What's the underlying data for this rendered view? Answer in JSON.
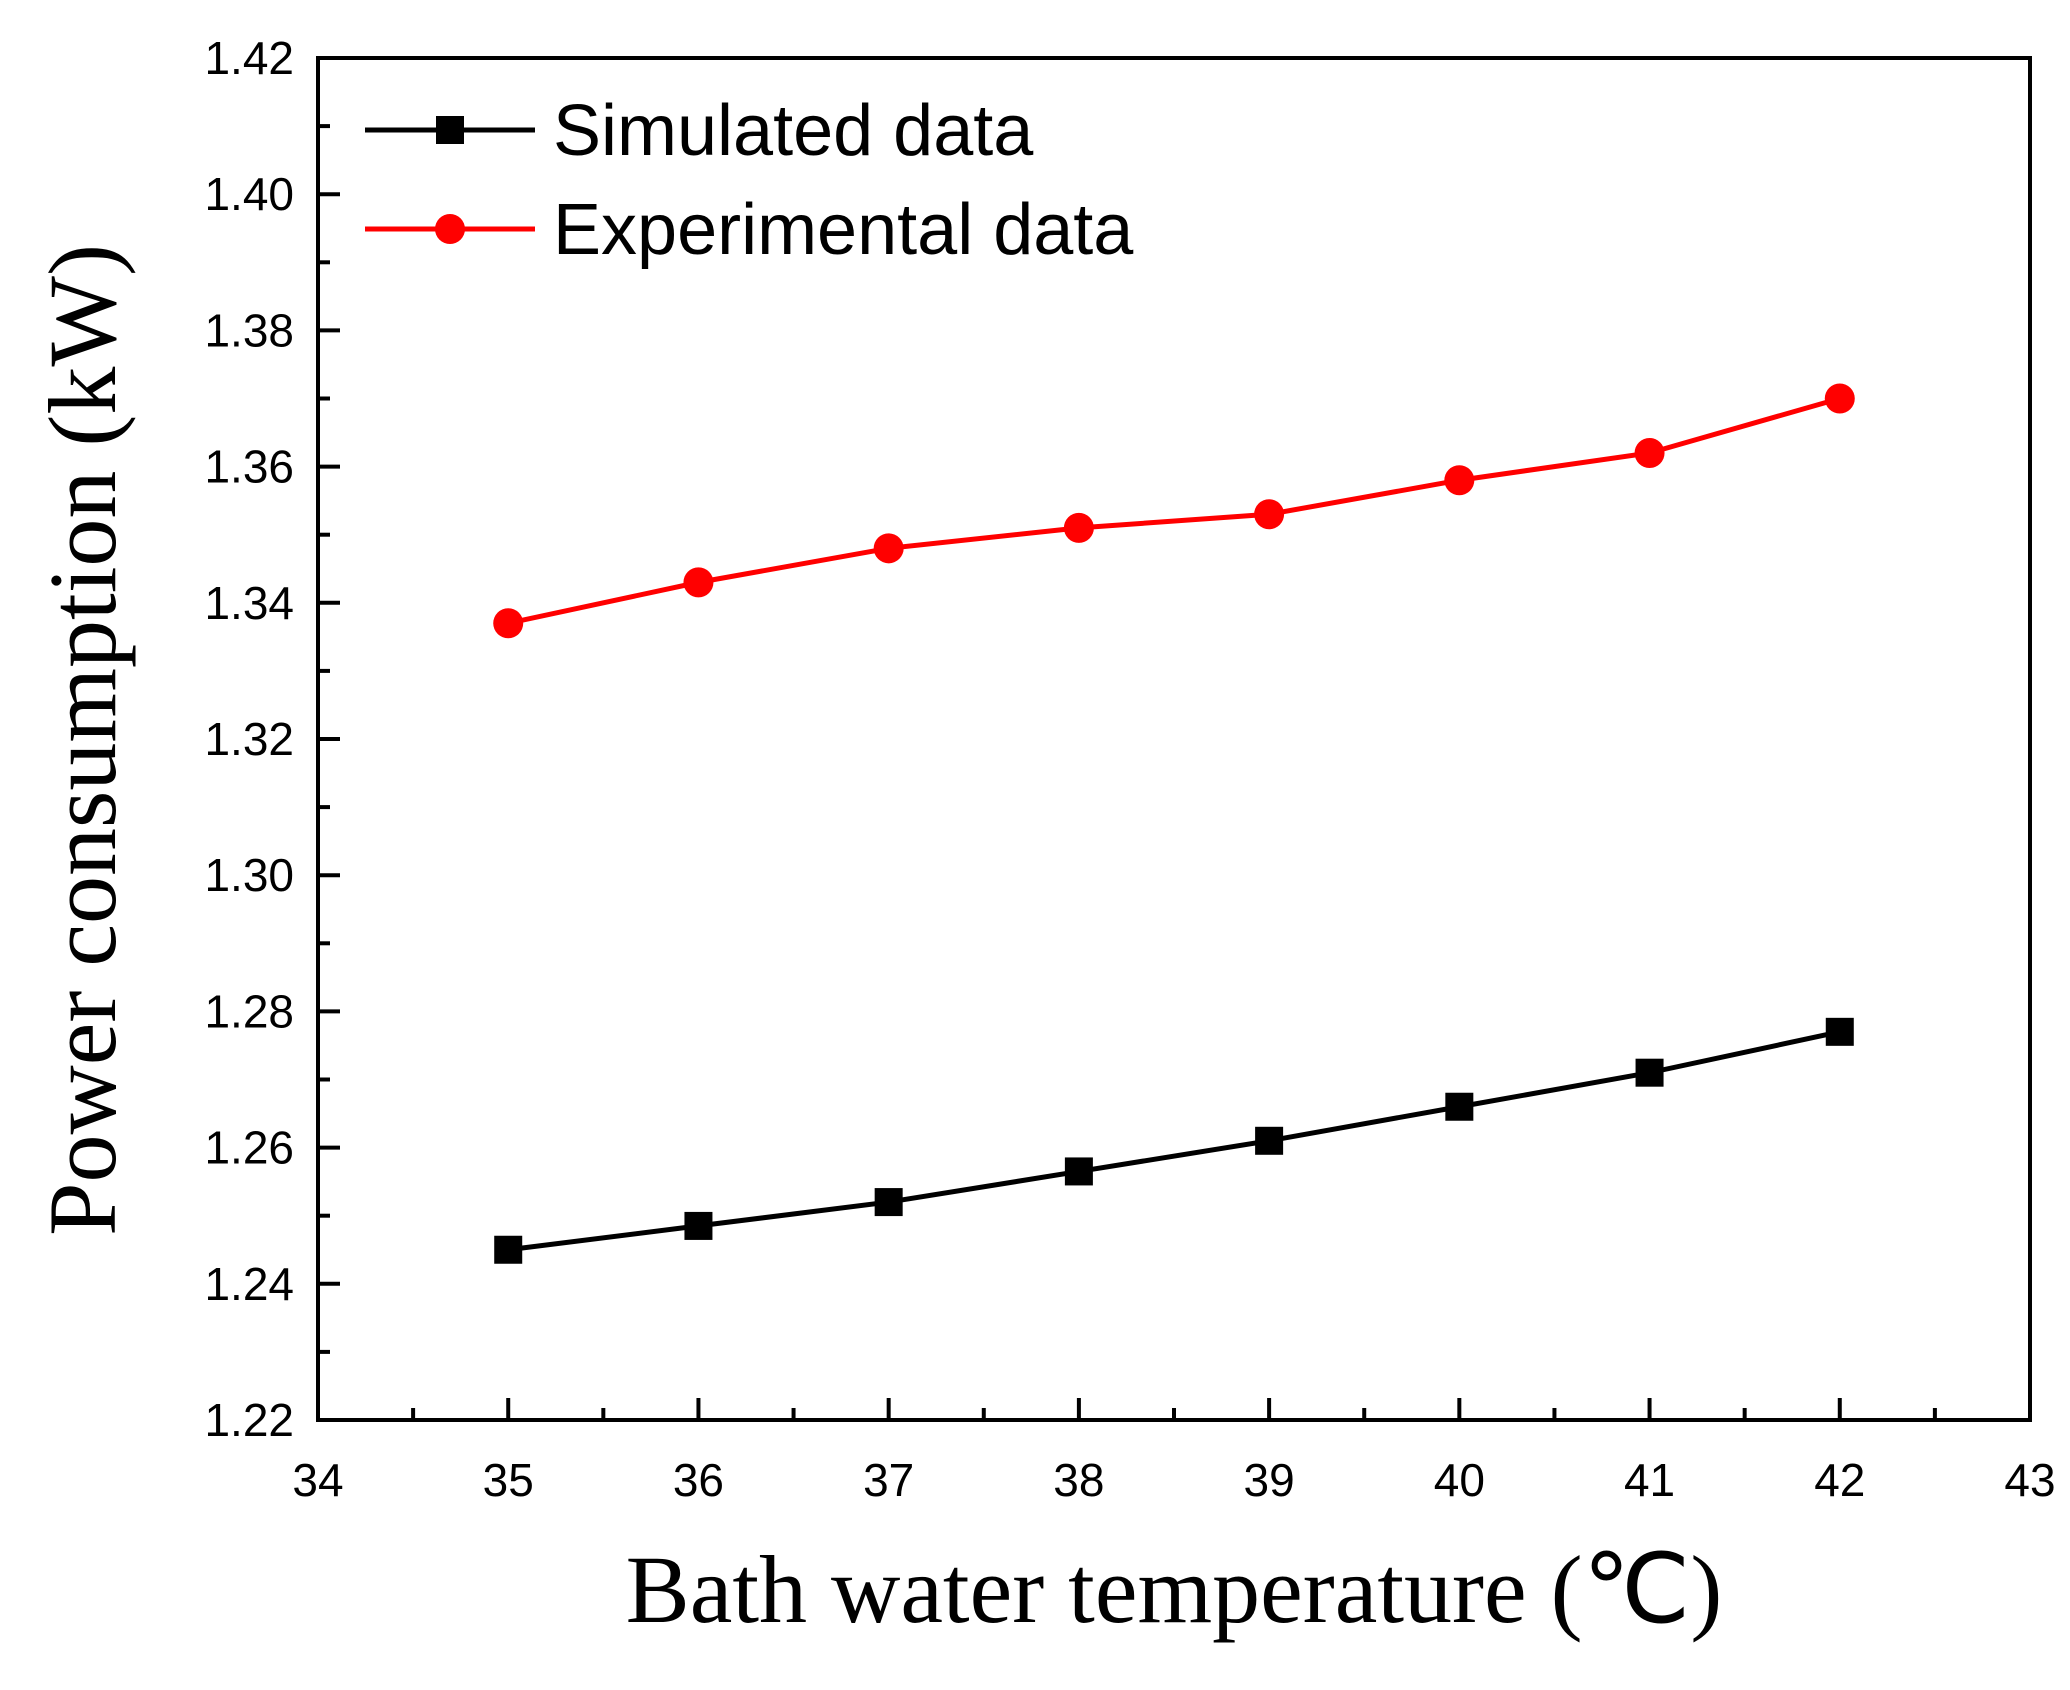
{
  "chart_data": {
    "type": "line",
    "title": "",
    "xlabel": "Bath water temperature (℃)",
    "ylabel": "Power consumption (kW)",
    "x": [
      35,
      36,
      37,
      38,
      39,
      40,
      41,
      42
    ],
    "xlim": [
      34,
      43
    ],
    "ylim": [
      1.22,
      1.42
    ],
    "xticks": [
      "34",
      "35",
      "36",
      "37",
      "38",
      "39",
      "40",
      "41",
      "42",
      "43"
    ],
    "yticks": [
      "1.22",
      "1.24",
      "1.26",
      "1.28",
      "1.30",
      "1.32",
      "1.34",
      "1.36",
      "1.38",
      "1.40",
      "1.42"
    ],
    "grid": false,
    "legend_position": "top-left",
    "series": [
      {
        "name": "Simulated data",
        "color": "#000000",
        "marker": "square",
        "values": [
          1.245,
          1.2485,
          1.252,
          1.2565,
          1.261,
          1.266,
          1.271,
          1.277
        ]
      },
      {
        "name": "Experimental data",
        "color": "#ff0000",
        "marker": "circle",
        "values": [
          1.337,
          1.343,
          1.348,
          1.351,
          1.353,
          1.358,
          1.362,
          1.37
        ]
      }
    ]
  }
}
